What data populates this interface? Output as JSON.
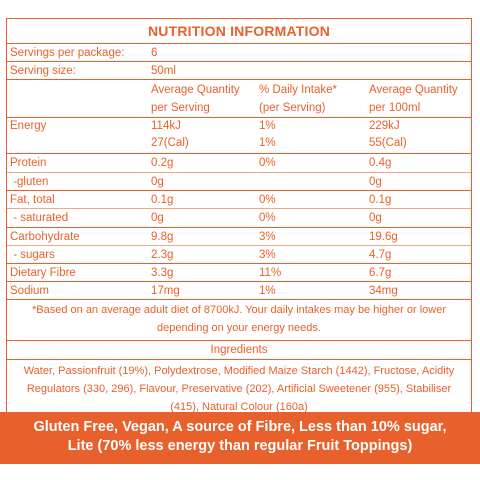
{
  "panel": {
    "title": "NUTRITION INFORMATION",
    "servings_label": "Servings per package:",
    "servings_value": "6",
    "size_label": "Serving size:",
    "size_value": "50ml",
    "headers": [
      [
        "Average Quantity",
        "per Serving"
      ],
      [
        "% Daily Intake*",
        "(per Serving)"
      ],
      [
        "Average Quantity",
        "per 100ml"
      ]
    ],
    "rows": [
      {
        "name": "Energy",
        "lines": [
          [
            "114kJ",
            "1%",
            "229kJ"
          ],
          [
            "27(Cal)",
            "1%",
            "55(Cal)"
          ]
        ]
      },
      {
        "name": "Protein",
        "lines": [
          [
            "0.2g",
            "0%",
            "0.4g"
          ]
        ]
      },
      {
        "name": " -gluten",
        "lines": [
          [
            "0g",
            "",
            "0g"
          ]
        ]
      },
      {
        "name": "Fat, total",
        "lines": [
          [
            "0.1g",
            "0%",
            "0.1g"
          ]
        ]
      },
      {
        "name": " - saturated",
        "lines": [
          [
            "0g",
            "0%",
            "0g"
          ]
        ]
      },
      {
        "name": "Carbohydrate",
        "lines": [
          [
            "9.8g",
            "3%",
            "19.6g"
          ]
        ]
      },
      {
        "name": " - sugars",
        "lines": [
          [
            "2.3g",
            "3%",
            "4.7g"
          ]
        ]
      },
      {
        "name": "Dietary Fibre",
        "lines": [
          [
            "3.3g",
            "11%",
            "6.7g"
          ]
        ]
      },
      {
        "name": "Sodium",
        "lines": [
          [
            "17mg",
            "1%",
            "34mg"
          ]
        ]
      }
    ],
    "footnote": "*Based on an average adult diet of 8700kJ. Your daily intakes may be higher or lower depending on your energy needs.",
    "ingredients_title": "Ingredients",
    "ingredients_text": "Water, Passionfruit (19%), Polydextrose, Modified Maize Starch (1442), Fructose, Acidity Regulators (330, 296), Flavour, Preservative (202), Artificial Sweetener (955), Stabiliser (415), Natural Colour (160a)"
  },
  "banner": {
    "line1": "Gluten Free, Vegan, A source of Fibre, Less than 10% sugar,",
    "line2": "Lite (70% less energy than regular Fruit Toppings)"
  },
  "colors": {
    "accent": "#e8612c",
    "background": "#ffffff"
  }
}
